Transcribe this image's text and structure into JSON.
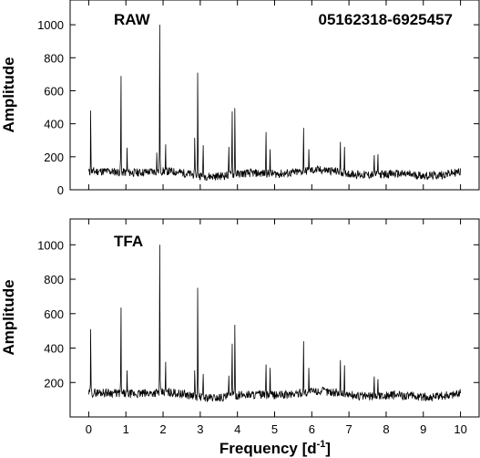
{
  "figure": {
    "star_id": "05162318-6925457",
    "xlabel_main": "Frequency [d",
    "xlabel_sup": "-1",
    "xlabel_close": "]",
    "x_ticks": [
      "0",
      "1",
      "2",
      "3",
      "4",
      "5",
      "6",
      "7",
      "8",
      "9",
      "10"
    ]
  },
  "chart_data": [
    {
      "type": "line",
      "panel": "top",
      "label": "RAW",
      "xlabel": "",
      "ylabel": "Amplitude",
      "xlim": [
        -0.5,
        10.5
      ],
      "ylim": [
        0,
        1150
      ],
      "y_ticks": [
        0,
        200,
        400,
        600,
        800,
        1000
      ],
      "y_tick_labels": [
        "0",
        "200",
        "400",
        "600",
        "800",
        "1000"
      ],
      "baseline": 100,
      "noise": 25,
      "x_range": [
        0,
        10
      ],
      "peaks": [
        {
          "x": 0.05,
          "y": 480
        },
        {
          "x": 0.87,
          "y": 690
        },
        {
          "x": 1.03,
          "y": 255
        },
        {
          "x": 1.83,
          "y": 225
        },
        {
          "x": 1.91,
          "y": 1000
        },
        {
          "x": 2.07,
          "y": 275
        },
        {
          "x": 2.85,
          "y": 315
        },
        {
          "x": 2.93,
          "y": 710
        },
        {
          "x": 3.08,
          "y": 270
        },
        {
          "x": 3.77,
          "y": 260
        },
        {
          "x": 3.86,
          "y": 475
        },
        {
          "x": 3.93,
          "y": 495
        },
        {
          "x": 4.77,
          "y": 350
        },
        {
          "x": 4.88,
          "y": 245
        },
        {
          "x": 5.78,
          "y": 375
        },
        {
          "x": 5.92,
          "y": 245
        },
        {
          "x": 6.77,
          "y": 290
        },
        {
          "x": 6.88,
          "y": 260
        },
        {
          "x": 7.68,
          "y": 210
        },
        {
          "x": 7.78,
          "y": 215
        }
      ]
    },
    {
      "type": "line",
      "panel": "bottom",
      "label": "TFA",
      "xlabel": "",
      "ylabel": "Amplitude",
      "xlim": [
        -0.5,
        10.5
      ],
      "ylim": [
        0,
        1150
      ],
      "y_ticks": [
        200,
        400,
        600,
        800,
        1000
      ],
      "y_tick_labels": [
        "200",
        "400",
        "600",
        "800",
        "1000"
      ],
      "baseline": 130,
      "noise": 25,
      "x_range": [
        0,
        10
      ],
      "peaks": [
        {
          "x": 0.05,
          "y": 510
        },
        {
          "x": 0.87,
          "y": 635
        },
        {
          "x": 1.03,
          "y": 270
        },
        {
          "x": 1.91,
          "y": 1000
        },
        {
          "x": 2.07,
          "y": 320
        },
        {
          "x": 2.85,
          "y": 270
        },
        {
          "x": 2.93,
          "y": 750
        },
        {
          "x": 3.08,
          "y": 250
        },
        {
          "x": 3.77,
          "y": 240
        },
        {
          "x": 3.86,
          "y": 425
        },
        {
          "x": 3.93,
          "y": 535
        },
        {
          "x": 4.77,
          "y": 305
        },
        {
          "x": 4.88,
          "y": 285
        },
        {
          "x": 5.78,
          "y": 440
        },
        {
          "x": 5.92,
          "y": 285
        },
        {
          "x": 6.77,
          "y": 330
        },
        {
          "x": 6.88,
          "y": 300
        },
        {
          "x": 7.68,
          "y": 235
        },
        {
          "x": 7.78,
          "y": 220
        }
      ]
    }
  ]
}
